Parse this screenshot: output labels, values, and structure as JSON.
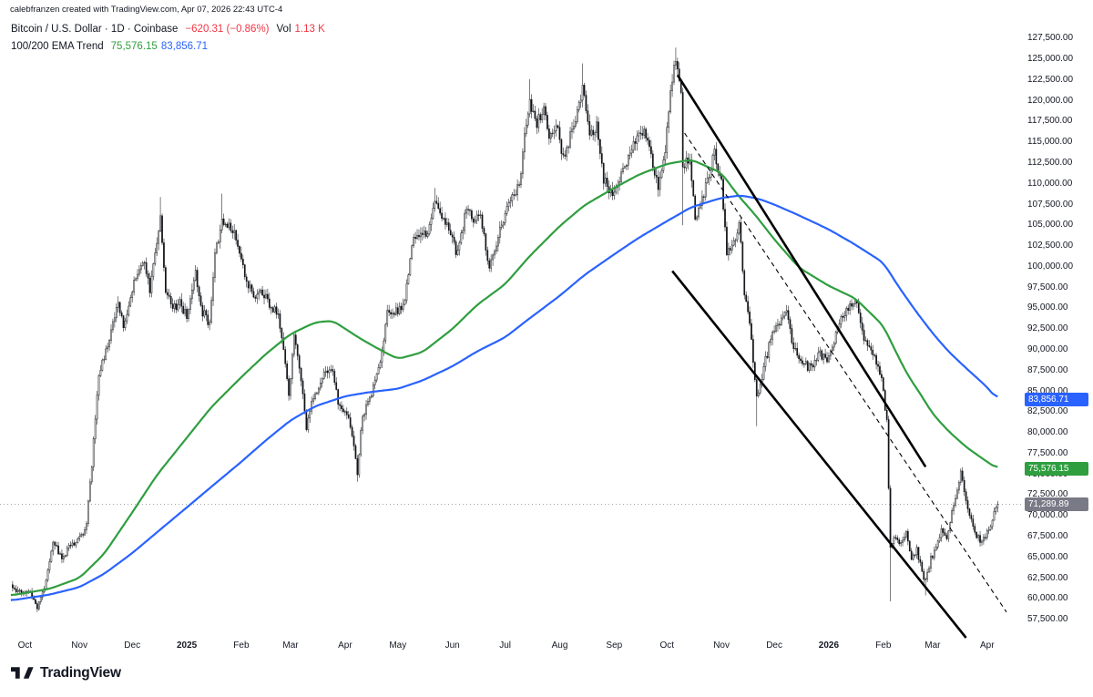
{
  "attribution": {
    "text": "calebfranzen created with TradingView.com, Apr 07, 2026 22:43 UTC-4"
  },
  "legend": {
    "title": "Bitcoin / U.S. Dollar · 1D · Coinbase",
    "change": "−620.31 (−0.86%)",
    "vol_label": "Vol",
    "vol_value": "1.13 K",
    "indicator_label": "100/200 EMA Trend",
    "ema100_value": "75,576.15",
    "ema200_value": "83,856.71"
  },
  "colors": {
    "ema100": "#2f9e3f",
    "ema200": "#2962ff",
    "down": "#f23645",
    "text": "#131722",
    "candle": "#111418",
    "last_price_badge": "#787b86",
    "trendline": "#000000"
  },
  "price_axis": {
    "min": 57500,
    "max": 127500,
    "step": 2500
  },
  "axis_badges": [
    {
      "name": "ema200-price",
      "text": "83,856.71",
      "price": 83856.71,
      "bg": "#2962ff"
    },
    {
      "name": "ema100-price",
      "text": "75,576.15",
      "price": 75576.15,
      "bg": "#2f9e3f"
    },
    {
      "name": "last-price",
      "text": "71,289.89",
      "price": 71289.89,
      "bg": "#787b86"
    }
  ],
  "time_axis": {
    "labels": [
      {
        "text": "Oct",
        "date": "2024-10-01",
        "bold": false
      },
      {
        "text": "Nov",
        "date": "2024-11-01",
        "bold": false
      },
      {
        "text": "Dec",
        "date": "2024-12-01",
        "bold": false
      },
      {
        "text": "2025",
        "date": "2025-01-01",
        "bold": true
      },
      {
        "text": "Feb",
        "date": "2025-02-01",
        "bold": false
      },
      {
        "text": "Mar",
        "date": "2025-03-01",
        "bold": false
      },
      {
        "text": "Apr",
        "date": "2025-04-01",
        "bold": false
      },
      {
        "text": "May",
        "date": "2025-05-01",
        "bold": false
      },
      {
        "text": "Jun",
        "date": "2025-06-01",
        "bold": false
      },
      {
        "text": "Jul",
        "date": "2025-07-01",
        "bold": false
      },
      {
        "text": "Aug",
        "date": "2025-08-01",
        "bold": false
      },
      {
        "text": "Sep",
        "date": "2025-09-01",
        "bold": false
      },
      {
        "text": "Oct",
        "date": "2025-10-01",
        "bold": false
      },
      {
        "text": "Nov",
        "date": "2025-11-01",
        "bold": false
      },
      {
        "text": "Dec",
        "date": "2025-12-01",
        "bold": false
      },
      {
        "text": "2026",
        "date": "2026-01-01",
        "bold": true
      },
      {
        "text": "Feb",
        "date": "2026-02-01",
        "bold": false
      },
      {
        "text": "Mar",
        "date": "2026-03-01",
        "bold": false
      },
      {
        "text": "Apr",
        "date": "2026-04-01",
        "bold": false
      }
    ]
  },
  "footer": {
    "brand": "TradingView"
  },
  "chart_data": {
    "type": "candlestick",
    "symbol": "Bitcoin / U.S. Dollar",
    "interval": "1D",
    "exchange": "Coinbase",
    "last_price": 71289.89,
    "change": -620.31,
    "change_pct": -0.86,
    "volume": "1.13 K",
    "x_range": [
      "2024-09-22",
      "2026-04-12"
    ],
    "y_range": [
      56300,
      128200
    ],
    "last_price_line": {
      "price": 71289.89,
      "style": "dotted"
    },
    "price_anchors": [
      [
        "2024-09-23",
        61300
      ],
      [
        "2024-09-28",
        60600
      ],
      [
        "2024-10-04",
        60900
      ],
      [
        "2024-10-08",
        58900
      ],
      [
        "2024-10-12",
        61200
      ],
      [
        "2024-10-17",
        66900
      ],
      [
        "2024-10-22",
        64800
      ],
      [
        "2024-10-27",
        66400
      ],
      [
        "2024-11-01",
        67200
      ],
      [
        "2024-11-05",
        68800
      ],
      [
        "2024-11-08",
        76200
      ],
      [
        "2024-11-12",
        87300
      ],
      [
        "2024-11-16",
        89500
      ],
      [
        "2024-11-20",
        93200
      ],
      [
        "2024-11-23",
        96100
      ],
      [
        "2024-11-26",
        92500
      ],
      [
        "2024-11-30",
        96500
      ],
      [
        "2024-12-05",
        99800
      ],
      [
        "2024-12-08",
        100100
      ],
      [
        "2024-12-11",
        97200
      ],
      [
        "2024-12-14",
        101400
      ],
      [
        "2024-12-17",
        106300
      ],
      [
        "2024-12-20",
        97300
      ],
      [
        "2024-12-24",
        94800
      ],
      [
        "2024-12-28",
        95600
      ],
      [
        "2025-01-01",
        93800
      ],
      [
        "2025-01-06",
        98900
      ],
      [
        "2025-01-10",
        94500
      ],
      [
        "2025-01-14",
        93100
      ],
      [
        "2025-01-17",
        101000
      ],
      [
        "2025-01-21",
        105900
      ],
      [
        "2025-01-24",
        104800
      ],
      [
        "2025-01-29",
        103500
      ],
      [
        "2025-02-03",
        98600
      ],
      [
        "2025-02-08",
        96400
      ],
      [
        "2025-02-13",
        96800
      ],
      [
        "2025-02-18",
        95200
      ],
      [
        "2025-02-22",
        94500
      ],
      [
        "2025-02-26",
        88200
      ],
      [
        "2025-02-28",
        84300
      ],
      [
        "2025-03-03",
        91500
      ],
      [
        "2025-03-06",
        87800
      ],
      [
        "2025-03-10",
        80700
      ],
      [
        "2025-03-14",
        84100
      ],
      [
        "2025-03-19",
        86800
      ],
      [
        "2025-03-24",
        87900
      ],
      [
        "2025-03-28",
        83600
      ],
      [
        "2025-04-02",
        82400
      ],
      [
        "2025-04-06",
        78200
      ],
      [
        "2025-04-08",
        75100
      ],
      [
        "2025-04-11",
        82100
      ],
      [
        "2025-04-16",
        84500
      ],
      [
        "2025-04-21",
        88300
      ],
      [
        "2025-04-25",
        94200
      ],
      [
        "2025-04-30",
        94500
      ],
      [
        "2025-05-05",
        95800
      ],
      [
        "2025-05-09",
        102800
      ],
      [
        "2025-05-13",
        103900
      ],
      [
        "2025-05-18",
        104100
      ],
      [
        "2025-05-22",
        108200
      ],
      [
        "2025-05-26",
        105800
      ],
      [
        "2025-05-30",
        104200
      ],
      [
        "2025-06-04",
        101300
      ],
      [
        "2025-06-09",
        107200
      ],
      [
        "2025-06-13",
        104900
      ],
      [
        "2025-06-17",
        106200
      ],
      [
        "2025-06-22",
        99900
      ],
      [
        "2025-06-26",
        102400
      ],
      [
        "2025-06-30",
        105700
      ],
      [
        "2025-07-04",
        107900
      ],
      [
        "2025-07-09",
        109800
      ],
      [
        "2025-07-13",
        117400
      ],
      [
        "2025-07-15",
        119900
      ],
      [
        "2025-07-19",
        117300
      ],
      [
        "2025-07-23",
        118800
      ],
      [
        "2025-07-26",
        115600
      ],
      [
        "2025-07-31",
        116800
      ],
      [
        "2025-08-03",
        112700
      ],
      [
        "2025-08-08",
        116400
      ],
      [
        "2025-08-12",
        119500
      ],
      [
        "2025-08-14",
        121800
      ],
      [
        "2025-08-18",
        115400
      ],
      [
        "2025-08-22",
        116900
      ],
      [
        "2025-08-26",
        110600
      ],
      [
        "2025-08-31",
        108400
      ],
      [
        "2025-09-05",
        110700
      ],
      [
        "2025-09-10",
        113800
      ],
      [
        "2025-09-14",
        115400
      ],
      [
        "2025-09-18",
        116700
      ],
      [
        "2025-09-23",
        112300
      ],
      [
        "2025-09-26",
        109400
      ],
      [
        "2025-09-30",
        114100
      ],
      [
        "2025-10-03",
        120700
      ],
      [
        "2025-10-06",
        125400
      ],
      [
        "2025-10-09",
        121600
      ],
      [
        "2025-10-10",
        111800
      ],
      [
        "2025-10-14",
        112900
      ],
      [
        "2025-10-17",
        105700
      ],
      [
        "2025-10-21",
        108100
      ],
      [
        "2025-10-25",
        111300
      ],
      [
        "2025-10-28",
        113600
      ],
      [
        "2025-11-01",
        110100
      ],
      [
        "2025-11-04",
        101900
      ],
      [
        "2025-11-08",
        102800
      ],
      [
        "2025-11-11",
        105200
      ],
      [
        "2025-11-14",
        96800
      ],
      [
        "2025-11-18",
        91400
      ],
      [
        "2025-11-21",
        83900
      ],
      [
        "2025-11-25",
        87800
      ],
      [
        "2025-11-29",
        91200
      ],
      [
        "2025-12-03",
        93100
      ],
      [
        "2025-12-08",
        94300
      ],
      [
        "2025-12-12",
        90100
      ],
      [
        "2025-12-17",
        88300
      ],
      [
        "2025-12-22",
        87600
      ],
      [
        "2025-12-27",
        89400
      ],
      [
        "2025-12-31",
        88600
      ],
      [
        "2026-01-04",
        91100
      ],
      [
        "2026-01-08",
        93600
      ],
      [
        "2026-01-13",
        95400
      ],
      [
        "2026-01-16",
        96100
      ],
      [
        "2026-01-20",
        91900
      ],
      [
        "2026-01-24",
        89900
      ],
      [
        "2026-01-28",
        88400
      ],
      [
        "2026-01-31",
        86200
      ],
      [
        "2026-02-03",
        81500
      ],
      [
        "2026-02-05",
        65800
      ],
      [
        "2026-02-08",
        67600
      ],
      [
        "2026-02-11",
        66400
      ],
      [
        "2026-02-14",
        68100
      ],
      [
        "2026-02-17",
        64600
      ],
      [
        "2026-02-20",
        65900
      ],
      [
        "2026-02-23",
        63100
      ],
      [
        "2026-02-25",
        61900
      ],
      [
        "2026-02-28",
        64700
      ],
      [
        "2026-03-03",
        66200
      ],
      [
        "2026-03-06",
        68400
      ],
      [
        "2026-03-09",
        67100
      ],
      [
        "2026-03-12",
        70600
      ],
      [
        "2026-03-15",
        73100
      ],
      [
        "2026-03-17",
        74900
      ],
      [
        "2026-03-20",
        71600
      ],
      [
        "2026-03-23",
        69100
      ],
      [
        "2026-03-26",
        67400
      ],
      [
        "2026-03-29",
        66900
      ],
      [
        "2026-04-01",
        67900
      ],
      [
        "2026-04-03",
        68700
      ],
      [
        "2026-04-05",
        70100
      ],
      [
        "2026-04-07",
        71289.89
      ]
    ],
    "forced_wicks": [
      {
        "date": "2024-10-08",
        "low": 58300
      },
      {
        "date": "2024-12-17",
        "high": 108300
      },
      {
        "date": "2025-01-21",
        "high": 108700
      },
      {
        "date": "2025-04-08",
        "low": 74000
      },
      {
        "date": "2025-05-22",
        "high": 109400
      },
      {
        "date": "2025-07-15",
        "high": 122500
      },
      {
        "date": "2025-08-14",
        "high": 124400
      },
      {
        "date": "2025-10-06",
        "high": 126300
      },
      {
        "date": "2025-10-10",
        "low": 104900
      },
      {
        "date": "2025-11-21",
        "low": 80700
      },
      {
        "date": "2026-02-05",
        "low": 59600
      },
      {
        "date": "2026-02-25",
        "low": 60300
      }
    ],
    "overlays": [
      {
        "name": "EMA 100",
        "period": 100,
        "color": "#2f9e3f",
        "last_value": 75576.15,
        "anchors": [
          [
            "2024-09-23",
            60300
          ],
          [
            "2024-10-15",
            61100
          ],
          [
            "2024-11-01",
            62400
          ],
          [
            "2024-11-15",
            65300
          ],
          [
            "2024-12-01",
            70300
          ],
          [
            "2024-12-15",
            74800
          ],
          [
            "2025-01-01",
            79300
          ],
          [
            "2025-01-15",
            83000
          ],
          [
            "2025-02-01",
            86600
          ],
          [
            "2025-02-15",
            89400
          ],
          [
            "2025-03-01",
            91800
          ],
          [
            "2025-03-15",
            93200
          ],
          [
            "2025-03-25",
            93400
          ],
          [
            "2025-04-10",
            91200
          ],
          [
            "2025-04-20",
            90000
          ],
          [
            "2025-05-01",
            88800
          ],
          [
            "2025-05-15",
            89600
          ],
          [
            "2025-06-01",
            92400
          ],
          [
            "2025-06-15",
            95300
          ],
          [
            "2025-07-01",
            97800
          ],
          [
            "2025-07-15",
            101200
          ],
          [
            "2025-08-01",
            104800
          ],
          [
            "2025-08-15",
            107300
          ],
          [
            "2025-09-01",
            109400
          ],
          [
            "2025-09-15",
            111000
          ],
          [
            "2025-10-01",
            112300
          ],
          [
            "2025-10-15",
            112800
          ],
          [
            "2025-11-01",
            111200
          ],
          [
            "2025-11-10",
            108600
          ],
          [
            "2025-11-20",
            106200
          ],
          [
            "2025-12-01",
            103200
          ],
          [
            "2025-12-15",
            99800
          ],
          [
            "2026-01-01",
            97600
          ],
          [
            "2026-01-16",
            96100
          ],
          [
            "2026-02-01",
            92800
          ],
          [
            "2026-02-08",
            89700
          ],
          [
            "2026-02-15",
            86800
          ],
          [
            "2026-02-22",
            84600
          ],
          [
            "2026-03-01",
            82200
          ],
          [
            "2026-03-10",
            80100
          ],
          [
            "2026-03-20",
            78200
          ],
          [
            "2026-04-01",
            76400
          ],
          [
            "2026-04-07",
            75576.15
          ]
        ]
      },
      {
        "name": "EMA 200",
        "period": 200,
        "color": "#2962ff",
        "last_value": 83856.71,
        "anchors": [
          [
            "2024-09-23",
            59700
          ],
          [
            "2024-10-15",
            60400
          ],
          [
            "2024-11-01",
            61300
          ],
          [
            "2024-11-15",
            62900
          ],
          [
            "2024-12-01",
            65400
          ],
          [
            "2024-12-15",
            67900
          ],
          [
            "2025-01-01",
            70900
          ],
          [
            "2025-01-15",
            73400
          ],
          [
            "2025-02-01",
            76400
          ],
          [
            "2025-02-15",
            79000
          ],
          [
            "2025-03-01",
            81400
          ],
          [
            "2025-03-15",
            83100
          ],
          [
            "2025-04-01",
            84300
          ],
          [
            "2025-04-15",
            84800
          ],
          [
            "2025-05-01",
            85200
          ],
          [
            "2025-05-15",
            86200
          ],
          [
            "2025-06-01",
            87900
          ],
          [
            "2025-06-15",
            89700
          ],
          [
            "2025-07-01",
            91400
          ],
          [
            "2025-07-15",
            93700
          ],
          [
            "2025-08-01",
            96400
          ],
          [
            "2025-08-15",
            98900
          ],
          [
            "2025-09-01",
            101400
          ],
          [
            "2025-09-15",
            103400
          ],
          [
            "2025-10-01",
            105400
          ],
          [
            "2025-10-15",
            107100
          ],
          [
            "2025-11-01",
            108200
          ],
          [
            "2025-11-12",
            108500
          ],
          [
            "2025-11-22",
            108100
          ],
          [
            "2025-12-01",
            107400
          ],
          [
            "2025-12-15",
            106100
          ],
          [
            "2026-01-01",
            104400
          ],
          [
            "2026-01-15",
            102700
          ],
          [
            "2026-02-01",
            100400
          ],
          [
            "2026-02-10",
            97400
          ],
          [
            "2026-02-20",
            94400
          ],
          [
            "2026-03-01",
            91900
          ],
          [
            "2026-03-10",
            89700
          ],
          [
            "2026-03-20",
            87700
          ],
          [
            "2026-04-01",
            85400
          ],
          [
            "2026-04-07",
            83856.71
          ]
        ]
      }
    ],
    "trendlines": [
      {
        "style": "solid",
        "width": 2.6,
        "from": [
          "2025-10-07",
          123000
        ],
        "to": [
          "2026-02-25",
          75800
        ]
      },
      {
        "style": "solid",
        "width": 2.6,
        "from": [
          "2025-10-04",
          99400
        ],
        "to": [
          "2026-03-20",
          55200
        ]
      },
      {
        "style": "dashed",
        "width": 1.1,
        "from": [
          "2025-10-11",
          116000
        ],
        "to": [
          "2026-04-12",
          58300
        ]
      }
    ]
  }
}
